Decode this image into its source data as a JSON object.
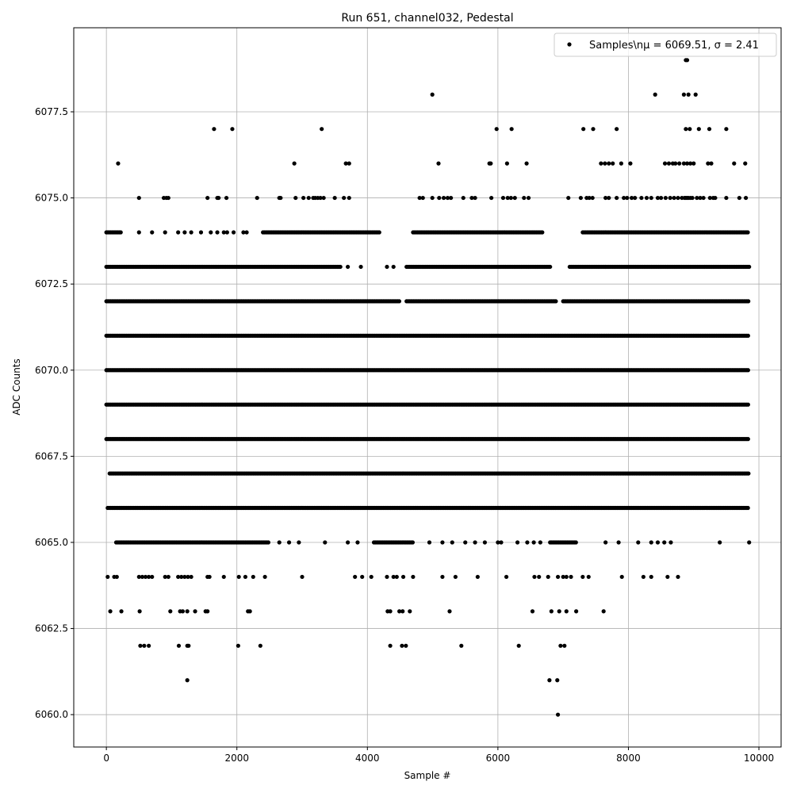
{
  "chart_data": {
    "type": "scatter",
    "title": "Run 651, channel032, Pedestal",
    "xlabel": "Sample #",
    "ylabel": "ADC Counts",
    "xlim": [
      -500,
      10340
    ],
    "ylim": [
      6059.06,
      6079.94
    ],
    "xticks": [
      "0",
      "2000",
      "4000",
      "6000",
      "8000",
      "10000"
    ],
    "xtick_values": [
      0,
      2000,
      4000,
      6000,
      8000,
      10000
    ],
    "yticks": [
      "6060.0",
      "6062.5",
      "6065.0",
      "6067.5",
      "6070.0",
      "6072.5",
      "6075.0",
      "6077.5"
    ],
    "ytick_values": [
      6060,
      6062.5,
      6065,
      6067.5,
      6070,
      6072.5,
      6075,
      6077.5
    ],
    "grid": true,
    "legend": {
      "placement": "top-right",
      "entries": [
        "Samples\\nμ = 6069.51, σ = 2.41"
      ]
    },
    "marker_color": "#000000",
    "series": [
      {
        "name": "Samples\\nμ = 6069.51, σ = 2.41",
        "levels": [
          {
            "y": 6079,
            "segments": [],
            "points": [
              8880,
              8900
            ]
          },
          {
            "y": 6078,
            "segments": [],
            "points": [
              4995,
              8410,
              8850,
              8920,
              9030
            ]
          },
          {
            "y": 6077,
            "segments": [],
            "points": [
              1650,
              1930,
              3300,
              5980,
              6210,
              7310,
              7460,
              7820,
              8880,
              8940,
              9080,
              9240,
              9500
            ]
          },
          {
            "y": 6076,
            "segments": [],
            "points": [
              180,
              2880,
              3670,
              3720,
              5090,
              5870,
              5890,
              6140,
              6440,
              7580,
              7640,
              7700,
              7760,
              7890,
              8030,
              8560,
              8620,
              8680,
              8720,
              8780,
              8850,
              8900,
              8950,
              9000,
              9220,
              9270,
              9620,
              9790
            ]
          },
          {
            "y": 6075,
            "segments": [],
            "points": [
              500,
              880,
              920,
              950,
              1550,
              1700,
              1720,
              1840,
              2310,
              2650,
              2670,
              2900,
              3020,
              3100,
              3170,
              3200,
              3240,
              3280,
              3330,
              3500,
              3640,
              3720,
              4800,
              4850,
              4995,
              5100,
              5170,
              5230,
              5280,
              5470,
              5600,
              5650,
              5900,
              6080,
              6150,
              6200,
              6260,
              6400,
              6470,
              7080,
              7270,
              7360,
              7400,
              7450,
              7650,
              7700,
              7820,
              7930,
              7980,
              8050,
              8100,
              8200,
              8280,
              8350,
              8450,
              8500,
              8570,
              8640,
              8700,
              8760,
              8820,
              8860,
              8880,
              8900,
              8920,
              8950,
              8980,
              9050,
              9100,
              9150,
              9250,
              9300,
              9330,
              9500,
              9700,
              9800
            ]
          },
          {
            "y": 6074,
            "segments": [
              [
                0,
                220
              ],
              [
                2400,
                4200
              ],
              [
                4700,
                6700
              ],
              [
                7300,
                9850
              ]
            ],
            "points": [
              500,
              700,
              900,
              1100,
              1200,
              1300,
              1450,
              1600,
              1700,
              1800,
              1850,
              1950,
              2100,
              2150
            ]
          },
          {
            "y": 6073,
            "segments": [
              [
                0,
                3600
              ],
              [
                4600,
                6800
              ],
              [
                7100,
                9850
              ]
            ],
            "points": [
              3700,
              3900,
              4300,
              4400
            ]
          },
          {
            "y": 6072,
            "segments": [
              [
                0,
                4500
              ],
              [
                4600,
                6900
              ],
              [
                7000,
                9850
              ]
            ],
            "points": []
          },
          {
            "y": 6071,
            "segments": [
              [
                0,
                9850
              ]
            ],
            "points": []
          },
          {
            "y": 6070,
            "segments": [
              [
                0,
                9850
              ]
            ],
            "points": []
          },
          {
            "y": 6069,
            "segments": [
              [
                0,
                9850
              ]
            ],
            "points": []
          },
          {
            "y": 6068,
            "segments": [
              [
                0,
                9850
              ]
            ],
            "points": []
          },
          {
            "y": 6067,
            "segments": [
              [
                50,
                9850
              ]
            ],
            "points": []
          },
          {
            "y": 6066,
            "segments": [
              [
                20,
                9850
              ]
            ],
            "points": []
          },
          {
            "y": 6065,
            "segments": [
              [
                150,
                2500
              ],
              [
                4100,
                4700
              ],
              [
                6800,
                7200
              ]
            ],
            "points": [
              2650,
              2800,
              2950,
              3350,
              3700,
              3850,
              4950,
              5150,
              5300,
              5500,
              5650,
              5800,
              6000,
              6050,
              6300,
              6450,
              6550,
              6650,
              7650,
              7850,
              8150,
              8350,
              8450,
              8550,
              8650,
              9400,
              9850
            ]
          },
          {
            "y": 6064,
            "segments": [],
            "points": [
              20,
              120,
              160,
              500,
              550,
              600,
              650,
              700,
              900,
              950,
              1100,
              1150,
              1200,
              1250,
              1300,
              1550,
              1580,
              1800,
              2030,
              2130,
              2250,
              2430,
              3000,
              3810,
              3920,
              4060,
              4300,
              4400,
              4450,
              4550,
              4700,
              5150,
              5350,
              5690,
              6130,
              6560,
              6630,
              6770,
              6920,
              7000,
              7050,
              7120,
              7300,
              7390,
              7900,
              8230,
              8350,
              8600,
              8760
            ]
          },
          {
            "y": 6063,
            "segments": [],
            "points": [
              60,
              230,
              510,
              980,
              1130,
              1170,
              1240,
              1360,
              1520,
              1550,
              2170,
              2200,
              4310,
              4350,
              4490,
              4540,
              4650,
              5260,
              6530,
              6820,
              6940,
              7050,
              7200,
              7620
            ]
          },
          {
            "y": 6062,
            "segments": [],
            "points": [
              520,
              580,
              650,
              1110,
              1240,
              1260,
              2020,
              2360,
              4350,
              4530,
              4590,
              5440,
              6320,
              6960,
              7020
            ]
          },
          {
            "y": 6061,
            "segments": [],
            "points": [
              1240,
              6790,
              6910
            ]
          },
          {
            "y": 6060,
            "segments": [],
            "points": [
              6920
            ]
          }
        ]
      }
    ]
  }
}
